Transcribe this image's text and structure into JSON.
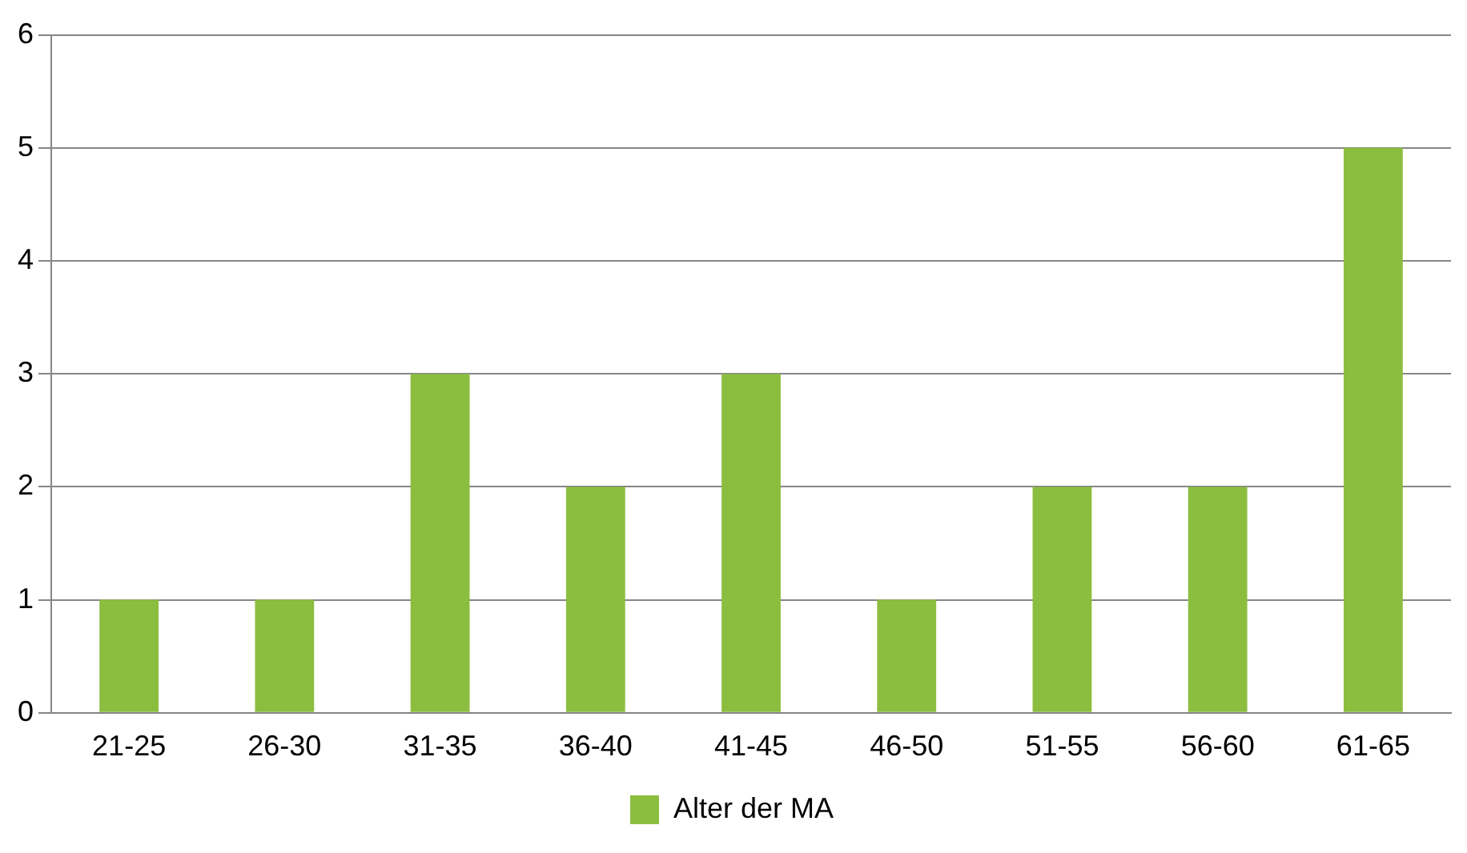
{
  "chart_data": {
    "type": "bar",
    "categories": [
      "21-25",
      "26-30",
      "31-35",
      "36-40",
      "41-45",
      "46-50",
      "51-55",
      "56-60",
      "61-65"
    ],
    "series": [
      {
        "name": "Alter der MA",
        "color": "#8bbe3f",
        "values": [
          1,
          1,
          3,
          2,
          3,
          1,
          2,
          2,
          5
        ]
      }
    ],
    "ylim": [
      0,
      6
    ],
    "yticks": [
      0,
      1,
      2,
      3,
      4,
      5,
      6
    ],
    "grid": "y",
    "legend": "bottom"
  }
}
